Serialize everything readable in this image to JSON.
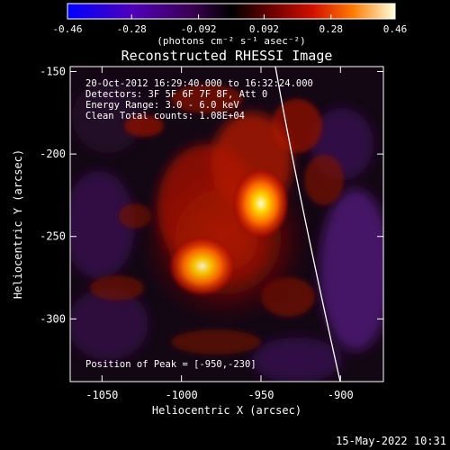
{
  "colorbar": {
    "tick_labels": [
      "-0.46",
      "-0.28",
      "-0.092",
      "0.092",
      "0.28",
      "0.46"
    ],
    "tick_values": [
      -0.46,
      -0.28,
      -0.092,
      0.092,
      0.28,
      0.46
    ],
    "range": [
      -0.46,
      0.46
    ],
    "units_text": "(photons cm⁻² s⁻¹ asec⁻²)"
  },
  "image": {
    "title": "Reconstructed RHESSI Image",
    "info_lines": [
      "20-Oct-2012 16:29:40.000 to 16:32:24.000",
      "Detectors: 3F 5F 6F 7F 8F, Att 0",
      "Energy Range: 3.0 - 6.0 keV",
      "Clean     Total counts: 1.08E+04"
    ],
    "peak_text": "Position of Peak = [-950,-230]",
    "xlabel": "Heliocentric X (arcsec)",
    "ylabel": "Heliocentric Y (arcsec)",
    "xlim": [
      -1070,
      -873
    ],
    "ylim": [
      -338,
      -147
    ],
    "x_ticks": [
      -1050,
      -1000,
      -950,
      -900
    ],
    "x_tick_labels": [
      "-1050",
      "-1000",
      "-950",
      "-900"
    ],
    "y_ticks": [
      -150,
      -200,
      -250,
      -300
    ],
    "y_tick_labels": [
      "-150",
      "-200",
      "-250",
      "-300"
    ],
    "sources": [
      {
        "x": -950,
        "y": -230,
        "relative_peak": 1.0
      },
      {
        "x": -987,
        "y": -268,
        "relative_peak": 0.92
      }
    ]
  },
  "timestamp": "15-May-2022 10:31"
}
